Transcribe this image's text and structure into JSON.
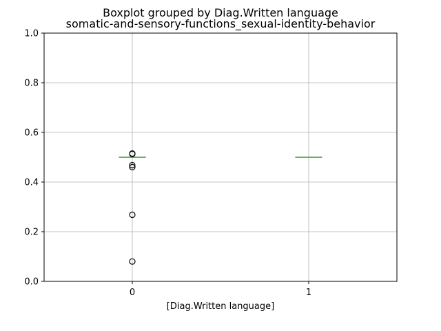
{
  "chart_data": {
    "type": "box",
    "title": "Boxplot grouped by Diag.Written language",
    "subtitle": "somatic-and-sensory-functions_sexual-identity-behavior",
    "xlabel": "[Diag.Written language]",
    "ylabel": "",
    "categories": [
      "0",
      "1"
    ],
    "ylim": [
      0,
      1.0
    ],
    "yticks": [
      "0.0",
      "0.2",
      "0.4",
      "0.6",
      "0.8",
      "1.0"
    ],
    "grid": true,
    "boxes": [
      {
        "category": "0",
        "min": 0.5,
        "q1": 0.5,
        "median": 0.5,
        "q3": 0.5,
        "max": 0.5,
        "outliers": [
          0.515,
          0.513,
          0.468,
          0.46,
          0.268,
          0.08
        ]
      },
      {
        "category": "1",
        "min": 0.5,
        "q1": 0.5,
        "median": 0.5,
        "q3": 0.5,
        "max": 0.5,
        "outliers": []
      }
    ],
    "colors": {
      "box": "#1f77b4",
      "median": "#2ca02c",
      "grid": "#b0b0b0",
      "outlier": "#000000"
    }
  }
}
